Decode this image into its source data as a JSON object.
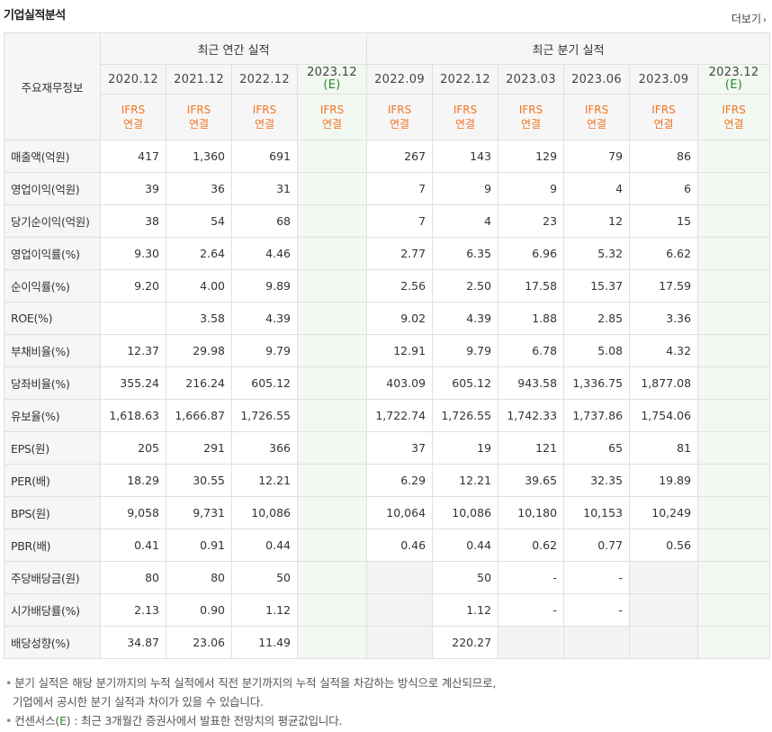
{
  "title": "기업실적분석",
  "more_label": "더보기",
  "header": {
    "corner": "주요재무정보",
    "annual_group": "최근 연간 실적",
    "quarter_group": "최근 분기 실적",
    "annual_periods": [
      "2020.12",
      "2021.12",
      "2022.12",
      "2023.12"
    ],
    "quarter_periods": [
      "2022.09",
      "2022.12",
      "2023.03",
      "2023.06",
      "2023.09",
      "2023.12"
    ],
    "estimate_mark": "(E)",
    "ifrs_top": "IFRS",
    "ifrs_bottom": "연결"
  },
  "rows": [
    {
      "label": "매출액(억원)",
      "values": [
        "417",
        "1,360",
        "691",
        "",
        "267",
        "143",
        "129",
        "79",
        "86",
        ""
      ]
    },
    {
      "label": "영업이익(억원)",
      "values": [
        "39",
        "36",
        "31",
        "",
        "7",
        "9",
        "9",
        "4",
        "6",
        ""
      ]
    },
    {
      "label": "당기순이익(억원)",
      "values": [
        "38",
        "54",
        "68",
        "",
        "7",
        "4",
        "23",
        "12",
        "15",
        ""
      ]
    },
    {
      "label": "영업이익률(%)",
      "values": [
        "9.30",
        "2.64",
        "4.46",
        "",
        "2.77",
        "6.35",
        "6.96",
        "5.32",
        "6.62",
        ""
      ]
    },
    {
      "label": "순이익률(%)",
      "values": [
        "9.20",
        "4.00",
        "9.89",
        "",
        "2.56",
        "2.50",
        "17.58",
        "15.37",
        "17.59",
        ""
      ]
    },
    {
      "label": "ROE(%)",
      "values": [
        "",
        "3.58",
        "4.39",
        "",
        "9.02",
        "4.39",
        "1.88",
        "2.85",
        "3.36",
        ""
      ]
    },
    {
      "label": "부채비율(%)",
      "values": [
        "12.37",
        "29.98",
        "9.79",
        "",
        "12.91",
        "9.79",
        "6.78",
        "5.08",
        "4.32",
        ""
      ]
    },
    {
      "label": "당좌비율(%)",
      "values": [
        "355.24",
        "216.24",
        "605.12",
        "",
        "403.09",
        "605.12",
        "943.58",
        "1,336.75",
        "1,877.08",
        ""
      ]
    },
    {
      "label": "유보율(%)",
      "values": [
        "1,618.63",
        "1,666.87",
        "1,726.55",
        "",
        "1,722.74",
        "1,726.55",
        "1,742.33",
        "1,737.86",
        "1,754.06",
        ""
      ]
    },
    {
      "label": "EPS(원)",
      "values": [
        "205",
        "291",
        "366",
        "",
        "37",
        "19",
        "121",
        "65",
        "81",
        ""
      ]
    },
    {
      "label": "PER(배)",
      "values": [
        "18.29",
        "30.55",
        "12.21",
        "",
        "6.29",
        "12.21",
        "39.65",
        "32.35",
        "19.89",
        ""
      ]
    },
    {
      "label": "BPS(원)",
      "values": [
        "9,058",
        "9,731",
        "10,086",
        "",
        "10,064",
        "10,086",
        "10,180",
        "10,153",
        "10,249",
        ""
      ]
    },
    {
      "label": "PBR(배)",
      "values": [
        "0.41",
        "0.91",
        "0.44",
        "",
        "0.46",
        "0.44",
        "0.62",
        "0.77",
        "0.56",
        ""
      ]
    },
    {
      "label": "주당배당금(원)",
      "values": [
        "80",
        "80",
        "50",
        "",
        "",
        "50",
        "-",
        "-",
        "",
        ""
      ]
    },
    {
      "label": "시가배당률(%)",
      "values": [
        "2.13",
        "0.90",
        "1.12",
        "",
        "",
        "1.12",
        "-",
        "-",
        "",
        ""
      ]
    },
    {
      "label": "배당성향(%)",
      "values": [
        "34.87",
        "23.06",
        "11.49",
        "",
        "",
        "220.27",
        "",
        "",
        "",
        ""
      ]
    }
  ],
  "notes": {
    "line1": "분기 실적은 해당 분기까지의 누적 실적에서 직전 분기까지의 누적 실적을 차감하는 방식으로 계산되므로,",
    "line2": "기업에서 공시한 분기 실적과 차이가 있을 수 있습니다.",
    "line3_prefix": "컨센서스(",
    "line3_e": "E",
    "line3_suffix": ") : 최근 3개월간 증권사에서 발표한 전망치의 평균값입니다."
  }
}
